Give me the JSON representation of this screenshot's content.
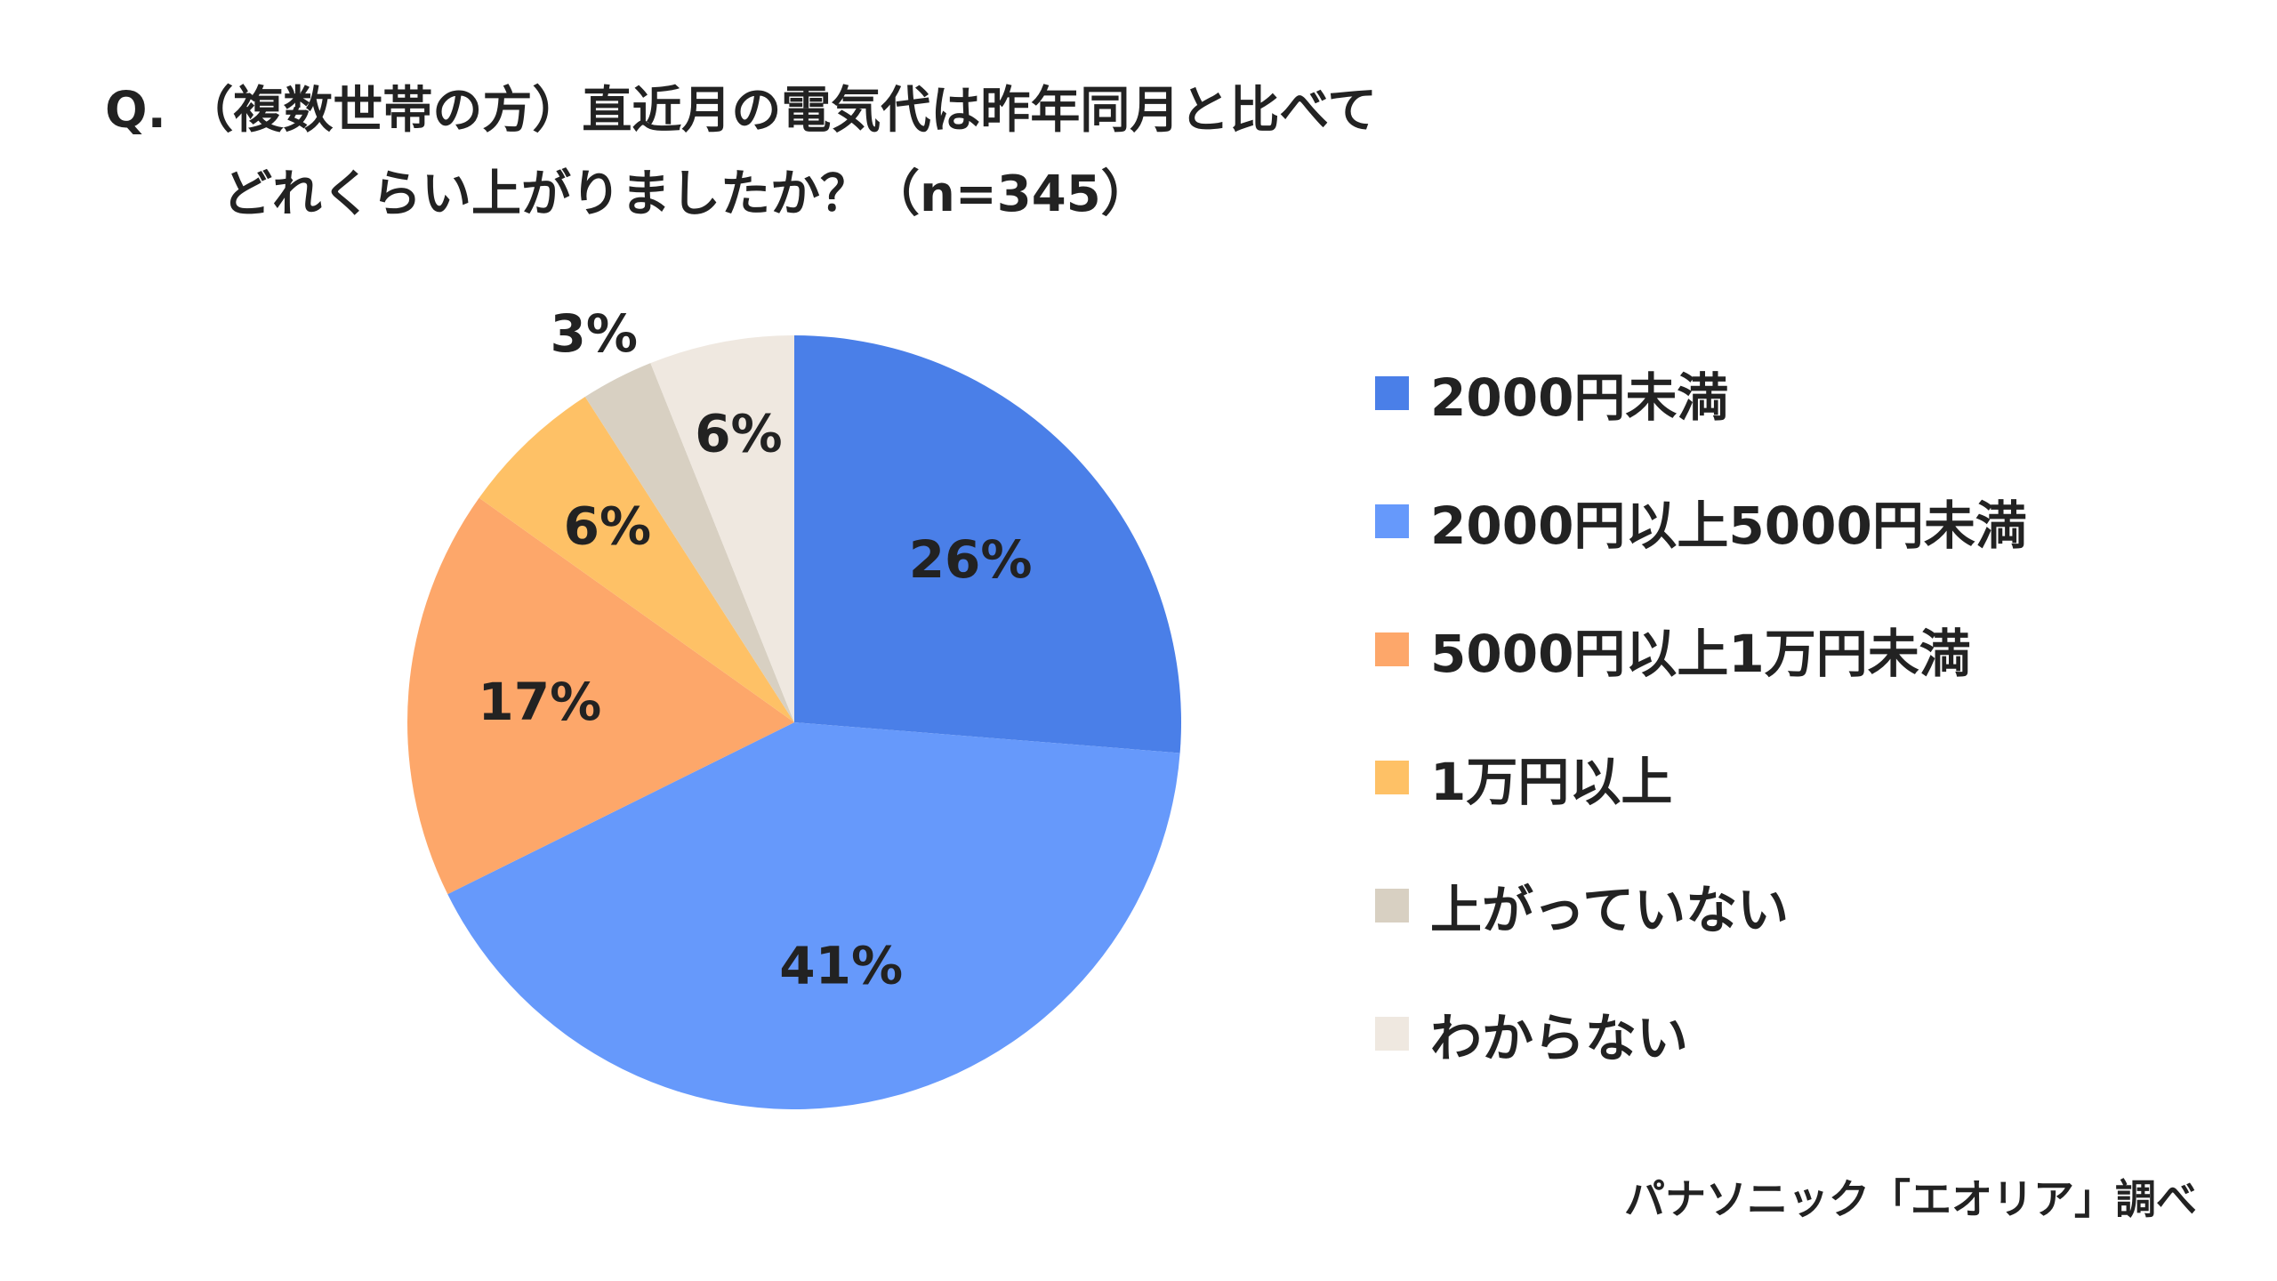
{
  "chart_data": {
    "type": "pie",
    "title_line1": "Q. （複数世帯の方）直近月の電気代は昨年同月と比べて",
    "title_line2": "どれくらい上がりましたか？（n=345）",
    "slices": [
      {
        "label": "2000円未満",
        "value": 26,
        "display": "26%",
        "color": "#4a7fe8"
      },
      {
        "label": "2000円以上5000円未満",
        "value": 41,
        "display": "41%",
        "color": "#6699fb"
      },
      {
        "label": "5000円以上1万円未満",
        "value": 17,
        "display": "17%",
        "color": "#fda76a"
      },
      {
        "label": "1万円以上",
        "value": 6,
        "display": "6%",
        "color": "#fec166"
      },
      {
        "label": "上がっていない",
        "value": 3,
        "display": "3%",
        "color": "#d8d0c2"
      },
      {
        "label": "わからない",
        "value": 6,
        "display": "6%",
        "color": "#efe8e0"
      }
    ],
    "legend_placement": "right",
    "source": "パナソニック「エオリア」調べ"
  }
}
